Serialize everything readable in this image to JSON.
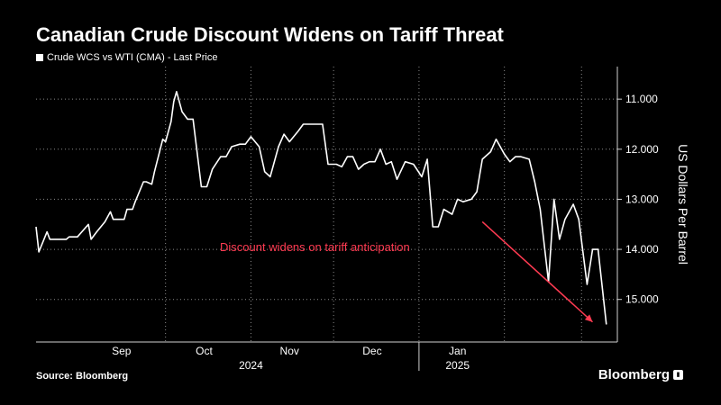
{
  "title": "Canadian Crude Discount Widens on Tariff Threat",
  "source": "Source: Bloomberg",
  "brand": "Bloomberg",
  "chart_data": {
    "type": "line",
    "series": [
      {
        "name": "Crude WCS vs WTI (CMA) - Last Price",
        "color": "#ffffff",
        "points": [
          [
            "2024-08-15",
            -13.55
          ],
          [
            "2024-08-16",
            -14.05
          ],
          [
            "2024-08-19",
            -13.65
          ],
          [
            "2024-08-20",
            -13.8
          ],
          [
            "2024-08-22",
            -13.8
          ],
          [
            "2024-08-26",
            -13.8
          ],
          [
            "2024-08-27",
            -13.75
          ],
          [
            "2024-08-30",
            -13.75
          ],
          [
            "2024-09-03",
            -13.5
          ],
          [
            "2024-09-04",
            -13.8
          ],
          [
            "2024-09-06",
            -13.65
          ],
          [
            "2024-09-09",
            -13.45
          ],
          [
            "2024-09-11",
            -13.25
          ],
          [
            "2024-09-12",
            -13.4
          ],
          [
            "2024-09-16",
            -13.4
          ],
          [
            "2024-09-17",
            -13.2
          ],
          [
            "2024-09-19",
            -13.2
          ],
          [
            "2024-09-20",
            -13.05
          ],
          [
            "2024-09-23",
            -12.65
          ],
          [
            "2024-09-24",
            -12.65
          ],
          [
            "2024-09-26",
            -12.7
          ],
          [
            "2024-09-27",
            -12.45
          ],
          [
            "2024-09-30",
            -11.8
          ],
          [
            "2024-10-01",
            -11.85
          ],
          [
            "2024-10-03",
            -11.45
          ],
          [
            "2024-10-04",
            -11.05
          ],
          [
            "2024-10-05",
            -10.85
          ],
          [
            "2024-10-07",
            -11.25
          ],
          [
            "2024-10-09",
            -11.4
          ],
          [
            "2024-10-11",
            -11.4
          ],
          [
            "2024-10-14",
            -12.75
          ],
          [
            "2024-10-16",
            -12.75
          ],
          [
            "2024-10-18",
            -12.4
          ],
          [
            "2024-10-21",
            -12.15
          ],
          [
            "2024-10-23",
            -12.15
          ],
          [
            "2024-10-25",
            -11.95
          ],
          [
            "2024-10-28",
            -11.9
          ],
          [
            "2024-10-30",
            -11.9
          ],
          [
            "2024-11-01",
            -11.75
          ],
          [
            "2024-11-04",
            -11.95
          ],
          [
            "2024-11-06",
            -12.45
          ],
          [
            "2024-11-08",
            -12.55
          ],
          [
            "2024-11-11",
            -11.95
          ],
          [
            "2024-11-13",
            -11.7
          ],
          [
            "2024-11-15",
            -11.85
          ],
          [
            "2024-11-18",
            -11.65
          ],
          [
            "2024-11-20",
            -11.5
          ],
          [
            "2024-11-27",
            -11.5
          ],
          [
            "2024-11-29",
            -12.3
          ],
          [
            "2024-12-02",
            -12.3
          ],
          [
            "2024-12-04",
            -12.35
          ],
          [
            "2024-12-06",
            -12.15
          ],
          [
            "2024-12-08",
            -12.15
          ],
          [
            "2024-12-10",
            -12.4
          ],
          [
            "2024-12-12",
            -12.3
          ],
          [
            "2024-12-14",
            -12.25
          ],
          [
            "2024-12-16",
            -12.25
          ],
          [
            "2024-12-18",
            -12.0
          ],
          [
            "2024-12-20",
            -12.3
          ],
          [
            "2024-12-22",
            -12.25
          ],
          [
            "2024-12-24",
            -12.6
          ],
          [
            "2024-12-27",
            -12.25
          ],
          [
            "2024-12-30",
            -12.3
          ],
          [
            "2025-01-02",
            -12.55
          ],
          [
            "2025-01-04",
            -12.2
          ],
          [
            "2025-01-06",
            -13.55
          ],
          [
            "2025-01-08",
            -13.55
          ],
          [
            "2025-01-10",
            -13.2
          ],
          [
            "2025-01-13",
            -13.3
          ],
          [
            "2025-01-15",
            -13.0
          ],
          [
            "2025-01-17",
            -13.05
          ],
          [
            "2025-01-20",
            -13.0
          ],
          [
            "2025-01-22",
            -12.85
          ],
          [
            "2025-01-24",
            -12.2
          ],
          [
            "2025-01-27",
            -12.05
          ],
          [
            "2025-01-29",
            -11.8
          ],
          [
            "2025-02-01",
            -12.1
          ],
          [
            "2025-02-03",
            -12.25
          ],
          [
            "2025-02-05",
            -12.15
          ],
          [
            "2025-02-07",
            -12.15
          ],
          [
            "2025-02-10",
            -12.2
          ],
          [
            "2025-02-12",
            -12.65
          ],
          [
            "2025-02-14",
            -13.2
          ],
          [
            "2025-02-17",
            -14.65
          ],
          [
            "2025-02-19",
            -13.0
          ],
          [
            "2025-02-21",
            -13.8
          ],
          [
            "2025-02-23",
            -13.4
          ],
          [
            "2025-02-26",
            -13.1
          ],
          [
            "2025-02-28",
            -13.4
          ],
          [
            "2025-03-03",
            -14.7
          ],
          [
            "2025-03-05",
            -14.0
          ],
          [
            "2025-03-07",
            -14.0
          ],
          [
            "2025-03-10",
            -15.5
          ]
        ]
      }
    ],
    "x_range": [
      "2024-08-15",
      "2025-03-14"
    ],
    "x_ticks": [
      {
        "label": "Sep",
        "date": "2024-09-15"
      },
      {
        "label": "Oct",
        "date": "2024-10-15"
      },
      {
        "label": "Nov",
        "date": "2024-11-15"
      },
      {
        "label": "Dec",
        "date": "2024-12-15"
      },
      {
        "label": "Jan",
        "date": "2025-01-15"
      }
    ],
    "x_gridlines": [
      "2024-10-01",
      "2024-11-01",
      "2024-12-01",
      "2025-01-01",
      "2025-02-01",
      "2025-03-01"
    ],
    "x_year_labels": [
      {
        "label": "2024",
        "date": "2024-11-01"
      },
      {
        "label": "2025",
        "date": "2025-01-15"
      }
    ],
    "year_divider": "2025-01-01",
    "ylabel": "US Dollars Per Barrel",
    "y_axis_side": "right",
    "ylim": [
      -15.85,
      -10.35
    ],
    "y_ticks": [
      {
        "label": "11.000",
        "value": -11
      },
      {
        "label": "12.000",
        "value": -12
      },
      {
        "label": "13.000",
        "value": -13
      },
      {
        "label": "14.000",
        "value": -14
      },
      {
        "label": "15.000",
        "value": -15
      }
    ],
    "grid": true,
    "legend_position": "top-left",
    "annotation": {
      "text": "Discount widens on tariff anticipation",
      "color": "#ff3b52",
      "arrow_from": [
        "2025-01-24",
        -13.45
      ],
      "arrow_to": [
        "2025-03-05",
        -15.45
      ]
    }
  }
}
